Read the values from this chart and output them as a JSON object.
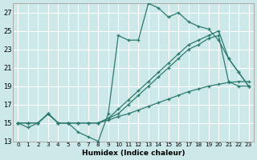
{
  "xlabel": "Humidex (Indice chaleur)",
  "bg_color": "#cce8e8",
  "grid_color": "#ffffff",
  "line_color": "#2d7a6e",
  "xlim": [
    -0.5,
    23.5
  ],
  "ylim": [
    13,
    28
  ],
  "xticks": [
    0,
    1,
    2,
    3,
    4,
    5,
    6,
    7,
    8,
    9,
    10,
    11,
    12,
    13,
    14,
    15,
    16,
    17,
    18,
    19,
    20,
    21,
    22,
    23
  ],
  "yticks": [
    13,
    15,
    17,
    19,
    21,
    23,
    25,
    27
  ],
  "series": [
    [
      15.0,
      14.5,
      15.0,
      16.0,
      15.0,
      15.0,
      14.0,
      13.5,
      13.0,
      16.0,
      24.5,
      24.0,
      24.0,
      28.0,
      27.5,
      26.5,
      27.0,
      26.0,
      25.5,
      25.2,
      24.0,
      22.0,
      20.5,
      19.0
    ],
    [
      15.0,
      15.0,
      15.0,
      16.0,
      15.0,
      15.0,
      15.0,
      15.0,
      15.0,
      15.5,
      16.5,
      17.5,
      18.5,
      19.5,
      20.5,
      21.5,
      22.5,
      23.5,
      24.0,
      24.5,
      25.0,
      22.0,
      20.5,
      19.0
    ],
    [
      15.0,
      15.0,
      15.0,
      16.0,
      15.0,
      15.0,
      15.0,
      15.0,
      15.0,
      15.3,
      15.7,
      16.0,
      16.4,
      16.8,
      17.2,
      17.6,
      18.0,
      18.4,
      18.7,
      19.0,
      19.2,
      19.4,
      19.5,
      19.5
    ],
    [
      15.0,
      15.0,
      15.0,
      16.0,
      15.0,
      15.0,
      15.0,
      15.0,
      15.0,
      15.5,
      16.0,
      17.0,
      18.0,
      19.0,
      20.0,
      21.0,
      22.0,
      23.0,
      23.5,
      24.2,
      24.5,
      19.5,
      19.0,
      19.0
    ]
  ]
}
